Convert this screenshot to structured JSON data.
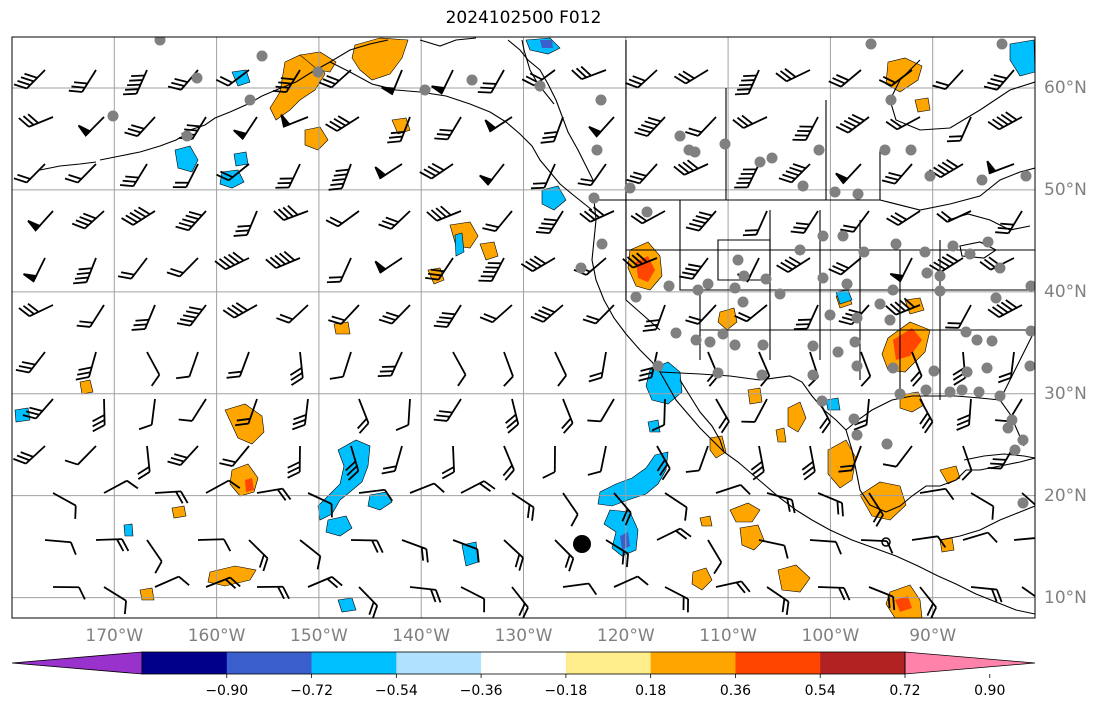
{
  "title": "2024102500 F012",
  "map": {
    "lon_range": [
      -180,
      -80
    ],
    "lat_range": [
      8,
      65
    ],
    "gridline_color": "#a0a0a0",
    "coastline_color": "#000000",
    "station_marker_color": "#808080",
    "highlight_marker_color": "#000000"
  },
  "lon_ticks": [
    {
      "value": -170,
      "label": "170°W"
    },
    {
      "value": -160,
      "label": "160°W"
    },
    {
      "value": -150,
      "label": "150°W"
    },
    {
      "value": -140,
      "label": "140°W"
    },
    {
      "value": -130,
      "label": "130°W"
    },
    {
      "value": -120,
      "label": "120°W"
    },
    {
      "value": -110,
      "label": "110°W"
    },
    {
      "value": -100,
      "label": "100°W"
    },
    {
      "value": -90,
      "label": "90°W"
    }
  ],
  "lat_ticks": [
    {
      "value": 60,
      "label": "60°N"
    },
    {
      "value": 50,
      "label": "50°N"
    },
    {
      "value": 40,
      "label": "40°N"
    },
    {
      "value": 30,
      "label": "30°N"
    },
    {
      "value": 20,
      "label": "20°N"
    },
    {
      "value": 10,
      "label": "10°N"
    }
  ],
  "colorbar": {
    "boundaries": [
      -1.08,
      -0.9,
      -0.72,
      -0.54,
      -0.36,
      -0.18,
      0.18,
      0.36,
      0.54,
      0.72,
      0.9,
      1.08
    ],
    "colors": [
      "#9932cc",
      "#00008b",
      "#3a5fcd",
      "#00bfff",
      "#b0e2ff",
      "#ffffff",
      "#ffec8b",
      "#ffa500",
      "#ff4500",
      "#b22222",
      "#ff82ab"
    ],
    "extend": "both",
    "tick_labels": [
      "−0.90",
      "−0.72",
      "−0.54",
      "−0.36",
      "−0.18",
      "0.18",
      "0.36",
      "0.54",
      "0.72",
      "0.90"
    ]
  }
}
